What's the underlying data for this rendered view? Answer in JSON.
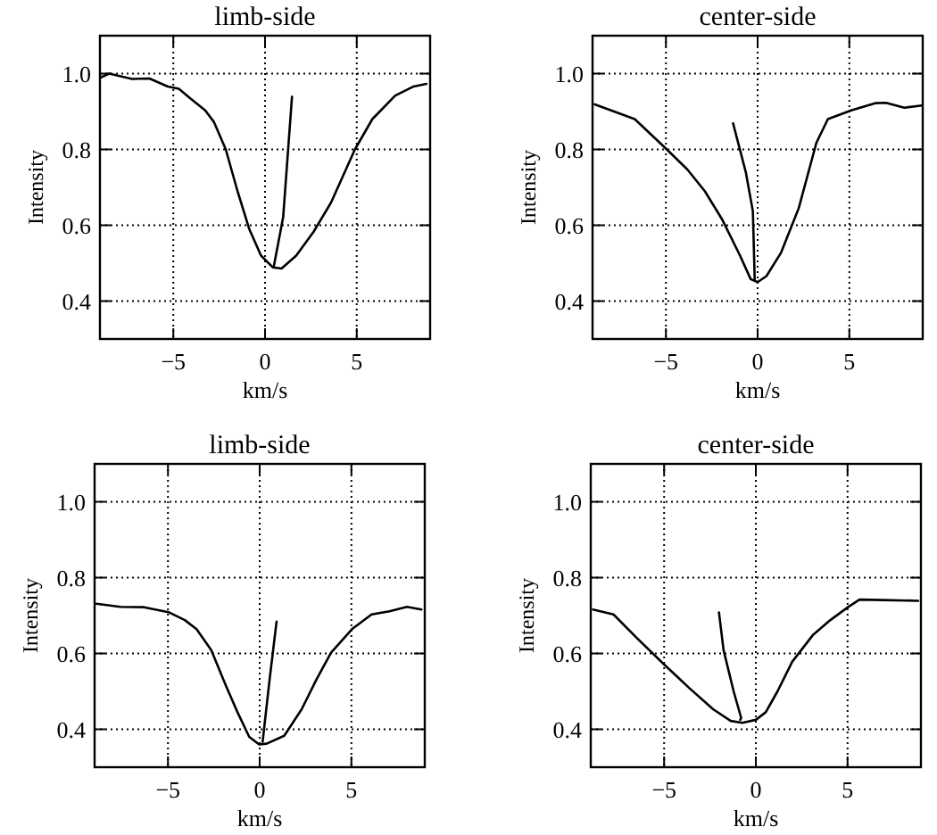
{
  "chart_data": [
    {
      "type": "line",
      "title": "limb-side",
      "xlabel": "km/s",
      "ylabel": "Intensity",
      "xlim": [
        -9,
        9
      ],
      "ylim": [
        0.3,
        1.1
      ],
      "xticks": [
        -5,
        0,
        5
      ],
      "yticks": [
        {
          "value": 0.4,
          "label": "0.4"
        },
        {
          "value": 0.6,
          "label": "0.6"
        },
        {
          "value": 0.8,
          "label": "0.8"
        },
        {
          "value": 1.0,
          "label": "1.0"
        }
      ],
      "grid": true,
      "line_style": "solid",
      "series": [
        {
          "color": "#000000",
          "x": [
            -8.95,
            -8.5,
            -7.25,
            -6.3,
            -5.3,
            -4.7,
            -4.06,
            -3.26,
            -2.78,
            -2.14,
            -1.5,
            -0.86,
            -0.22,
            0.42,
            0.9,
            1.7,
            2.65,
            3.6,
            4.9,
            5.85,
            7.1,
            8.1,
            8.8
          ],
          "values": [
            0.99,
            1.0,
            0.986,
            0.987,
            0.966,
            0.96,
            0.934,
            0.903,
            0.872,
            0.8,
            0.69,
            0.59,
            0.52,
            0.489,
            0.486,
            0.52,
            0.583,
            0.66,
            0.8,
            0.88,
            0.942,
            0.966,
            0.973
          ]
        },
        {
          "color": "#000000",
          "x": [
            0.48,
            0.99,
            1.47
          ],
          "values": [
            0.492,
            0.622,
            0.939
          ]
        }
      ]
    },
    {
      "type": "line",
      "title": "center-side",
      "xlabel": "km/s",
      "ylabel": "Intensity",
      "xlim": [
        -9,
        9
      ],
      "ylim": [
        0.3,
        1.1
      ],
      "xticks": [
        -5,
        0,
        5
      ],
      "yticks": [
        {
          "value": 0.4,
          "label": "0.4"
        },
        {
          "value": 0.6,
          "label": "0.6"
        },
        {
          "value": 0.8,
          "label": "0.8"
        },
        {
          "value": 1.0,
          "label": "1.0"
        }
      ],
      "grid": true,
      "line_style": "solid",
      "series": [
        {
          "color": "#000000",
          "x": [
            -8.88,
            -6.7,
            -4.95,
            -3.83,
            -2.88,
            -1.92,
            -0.96,
            -0.38,
            0,
            0.48,
            1.28,
            2.24,
            3.2,
            3.83,
            5.1,
            6.4,
            7.0,
            8.0,
            8.95
          ],
          "values": [
            0.919,
            0.88,
            0.8,
            0.747,
            0.69,
            0.614,
            0.52,
            0.458,
            0.45,
            0.466,
            0.528,
            0.645,
            0.817,
            0.88,
            0.903,
            0.922,
            0.923,
            0.91,
            0.916
          ]
        },
        {
          "color": "#000000",
          "x": [
            -1.34,
            -0.64,
            -0.26,
            -0.16
          ],
          "values": [
            0.869,
            0.739,
            0.637,
            0.458
          ]
        }
      ]
    },
    {
      "type": "line",
      "title": "limb-side",
      "xlabel": "km/s",
      "ylabel": "Intensity",
      "xlim": [
        -9,
        9
      ],
      "ylim": [
        0.3,
        1.1
      ],
      "xticks": [
        -5,
        0,
        5
      ],
      "yticks": [
        {
          "value": 0.4,
          "label": "0.4"
        },
        {
          "value": 0.6,
          "label": "0.6"
        },
        {
          "value": 0.8,
          "label": "0.8"
        },
        {
          "value": 1.0,
          "label": "1.0"
        }
      ],
      "grid": true,
      "line_style": "solid",
      "series": [
        {
          "color": "#000000",
          "x": [
            -8.9,
            -7.6,
            -6.3,
            -4.97,
            -4.08,
            -3.44,
            -2.64,
            -1.85,
            -1.21,
            -0.57,
            -0.03,
            0.38,
            1.34,
            2.29,
            3.09,
            3.89,
            5.03,
            6.1,
            7.07,
            8.03,
            8.82
          ],
          "values": [
            0.731,
            0.723,
            0.722,
            0.709,
            0.688,
            0.664,
            0.609,
            0.516,
            0.445,
            0.38,
            0.36,
            0.362,
            0.383,
            0.453,
            0.531,
            0.602,
            0.664,
            0.703,
            0.711,
            0.723,
            0.716
          ]
        },
        {
          "color": "#000000",
          "x": [
            0.16,
            0.54,
            0.92
          ],
          "values": [
            0.367,
            0.531,
            0.684
          ]
        }
      ]
    },
    {
      "type": "line",
      "title": "center-side",
      "xlabel": "km/s",
      "ylabel": "Intensity",
      "xlim": [
        -9,
        9
      ],
      "ylim": [
        0.3,
        1.1
      ],
      "xticks": [
        -5,
        0,
        5
      ],
      "yticks": [
        {
          "value": 0.4,
          "label": "0.4"
        },
        {
          "value": 0.6,
          "label": "0.6"
        },
        {
          "value": 0.8,
          "label": "0.8"
        },
        {
          "value": 1.0,
          "label": "1.0"
        }
      ],
      "grid": true,
      "line_style": "solid",
      "series": [
        {
          "color": "#000000",
          "x": [
            -8.88,
            -7.76,
            -6.49,
            -4.98,
            -3.61,
            -2.33,
            -1.37,
            -0.73,
            0,
            0.54,
            1.18,
            1.98,
            3.1,
            4.06,
            5.02,
            5.65,
            6.93,
            8.85
          ],
          "values": [
            0.716,
            0.703,
            0.641,
            0.57,
            0.508,
            0.453,
            0.422,
            0.417,
            0.425,
            0.445,
            0.5,
            0.578,
            0.648,
            0.688,
            0.722,
            0.742,
            0.741,
            0.739
          ]
        },
        {
          "color": "#000000",
          "x": [
            -2.01,
            -1.76,
            -1.21,
            -0.8,
            -0.85
          ],
          "values": [
            0.708,
            0.609,
            0.5,
            0.43,
            0.425
          ]
        }
      ]
    }
  ]
}
